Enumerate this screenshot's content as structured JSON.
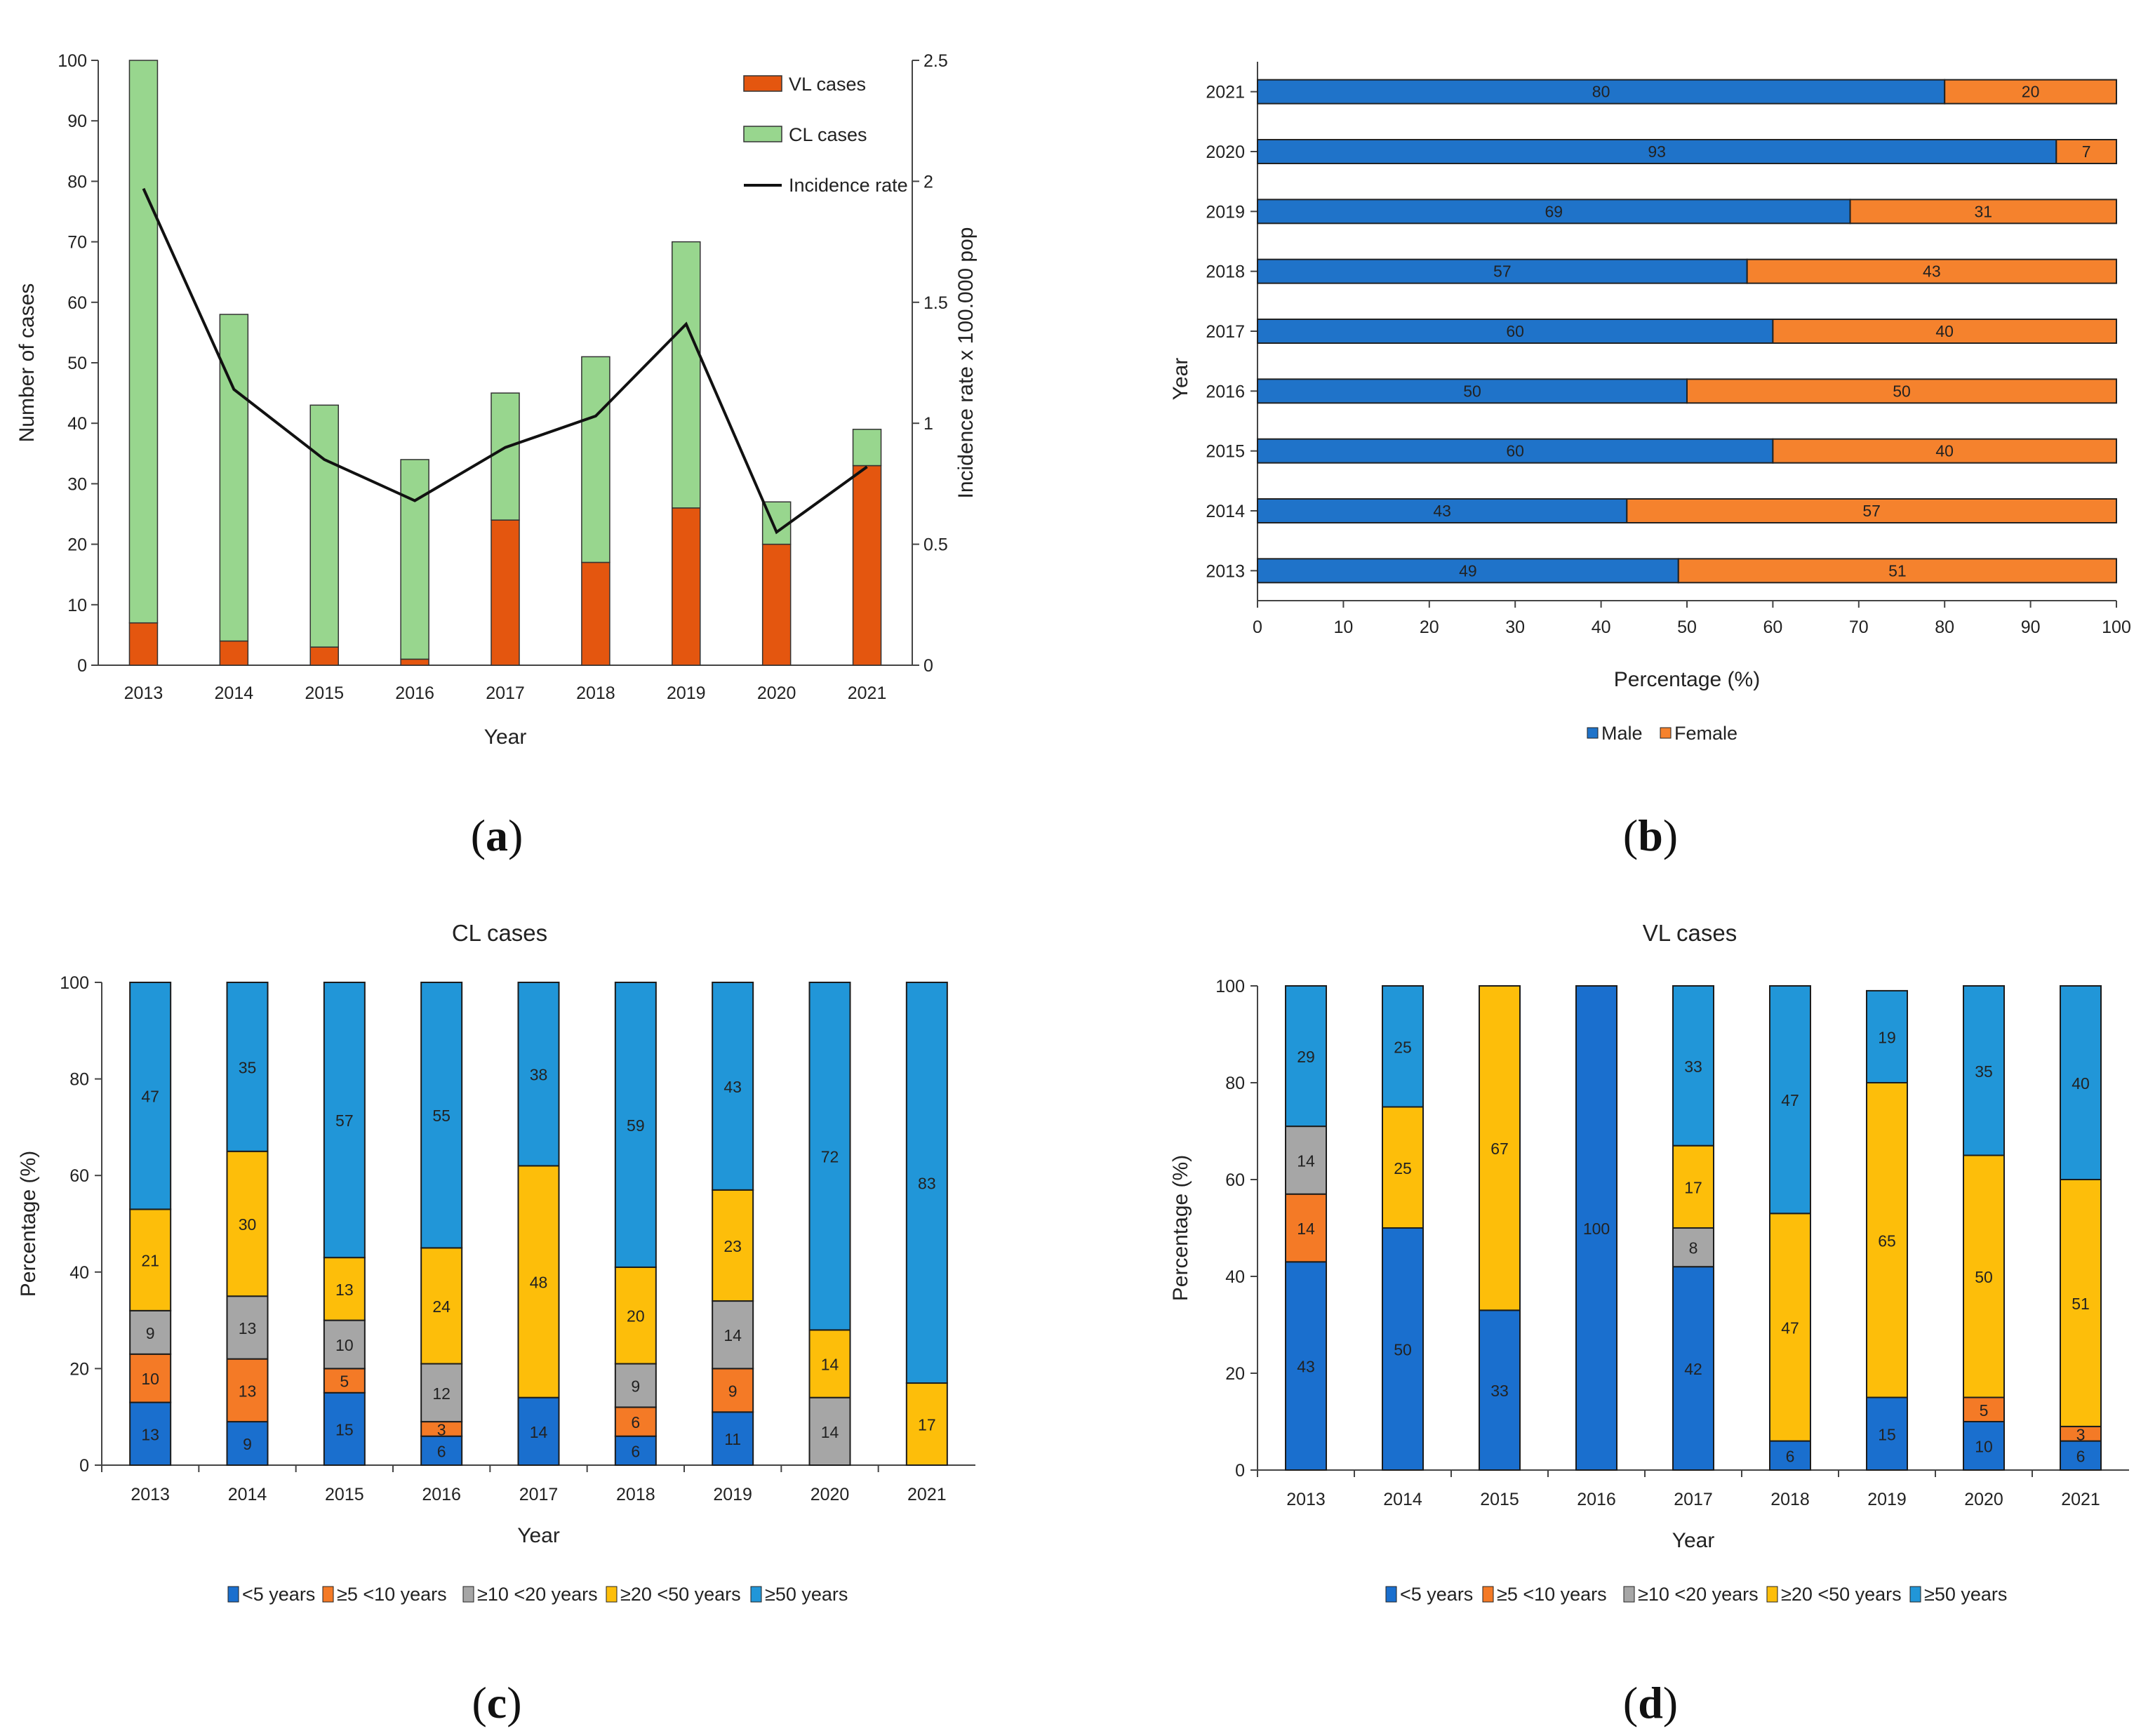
{
  "colors": {
    "vl": "#e4560f",
    "cl": "#98d68e",
    "line": "#111111",
    "male": "#1f73c9",
    "female": "#f5822d",
    "under5": "#1a6fce",
    "from5to10": "#f47a26",
    "from10to20": "#a6a6a6",
    "from20to50": "#fdbe0a",
    "over50": "#2196d8"
  },
  "panel_labels": {
    "a": {
      "open": "(",
      "letter": "a",
      "close": ")"
    },
    "b": {
      "open": "(",
      "letter": "b",
      "close": ")"
    },
    "c": {
      "open": "(",
      "letter": "c",
      "close": ")"
    },
    "d": {
      "open": "(",
      "letter": "d",
      "close": ")"
    }
  },
  "chart_data": [
    {
      "id": "a",
      "type": "bar",
      "stacked": true,
      "categories": [
        "2013",
        "2014",
        "2015",
        "2016",
        "2017",
        "2018",
        "2019",
        "2020",
        "2021"
      ],
      "series": [
        {
          "name": "VL cases",
          "values": [
            7,
            4,
            3,
            1,
            24,
            17,
            26,
            20,
            33
          ]
        },
        {
          "name": "CL cases",
          "values": [
            93,
            54,
            40,
            33,
            21,
            34,
            44,
            7,
            6
          ]
        }
      ],
      "line_series": {
        "name": "Incidence rate",
        "axis": "right",
        "values": [
          1.97,
          1.14,
          0.85,
          0.68,
          0.9,
          1.03,
          1.41,
          0.55,
          0.82
        ]
      },
      "xlabel": "Year",
      "ylabel": "Number of cases",
      "y2label": "Incidence rate x 100.000 pop",
      "ylim": [
        0,
        100
      ],
      "yticks": [
        "0",
        "10",
        "20",
        "30",
        "40",
        "50",
        "60",
        "70",
        "80",
        "90",
        "100"
      ],
      "y2lim": [
        0,
        2.5
      ],
      "y2ticks": [
        "0",
        "0.5",
        "1",
        "1.5",
        "2",
        "2.5"
      ],
      "legend": {
        "placement": "top-right",
        "items": [
          "VL cases",
          "CL cases",
          "Incidence rate"
        ]
      }
    },
    {
      "id": "b",
      "type": "bar",
      "orientation": "horizontal",
      "stacked": true,
      "categories": [
        "2013",
        "2014",
        "2015",
        "2016",
        "2017",
        "2018",
        "2019",
        "2020",
        "2021"
      ],
      "series": [
        {
          "name": "Male",
          "values": [
            49,
            43,
            60,
            50,
            60,
            57,
            69,
            93,
            80
          ]
        },
        {
          "name": "Female",
          "values": [
            51,
            57,
            40,
            50,
            40,
            43,
            31,
            7,
            20
          ]
        }
      ],
      "xlabel": "Percentage (%)",
      "ylabel": "Year",
      "xlim": [
        0,
        100
      ],
      "xticks": [
        "0",
        "10",
        "20",
        "30",
        "40",
        "50",
        "60",
        "70",
        "80",
        "90",
        "100"
      ],
      "legend": {
        "placement": "bottom",
        "items": [
          "Male",
          "Female"
        ]
      }
    },
    {
      "id": "c",
      "type": "bar",
      "stacked": true,
      "title": "CL cases",
      "categories": [
        "2013",
        "2014",
        "2015",
        "2016",
        "2017",
        "2018",
        "2019",
        "2020",
        "2021"
      ],
      "series": [
        {
          "name": "<5 years",
          "values": [
            13,
            9,
            15,
            6,
            14,
            6,
            11,
            0,
            0
          ],
          "labels": [
            "13",
            "9",
            "15",
            "6",
            "14",
            "6",
            "11",
            "",
            ""
          ]
        },
        {
          "name": "≥5 <10 years",
          "values": [
            10,
            13,
            5,
            3,
            0,
            6,
            9,
            0,
            0
          ],
          "labels": [
            "10",
            "13",
            "5",
            "3",
            "",
            "6",
            "9",
            "",
            ""
          ]
        },
        {
          "name": "≥10 <20 years",
          "values": [
            9,
            13,
            10,
            12,
            0,
            9,
            14,
            14,
            0
          ],
          "labels": [
            "9",
            "13",
            "10",
            "12",
            "",
            "9",
            "14",
            "14",
            ""
          ]
        },
        {
          "name": "≥20 <50 years",
          "values": [
            21,
            30,
            13,
            24,
            48,
            20,
            23,
            14,
            17
          ],
          "labels": [
            "21",
            "30",
            "13",
            "24",
            "48",
            "20",
            "23",
            "14",
            "17"
          ]
        },
        {
          "name": "≥50 years",
          "values": [
            47,
            35,
            57,
            55,
            38,
            59,
            43,
            72,
            83
          ],
          "labels": [
            "47",
            "35",
            "57",
            "55",
            "38",
            "59",
            "43",
            "72",
            "83"
          ]
        }
      ],
      "xlabel": "Year",
      "ylabel": "Percentage (%)",
      "ylim": [
        0,
        100
      ],
      "yticks": [
        "0",
        "20",
        "40",
        "60",
        "80",
        "100"
      ],
      "legend": {
        "placement": "bottom",
        "items": [
          "<5 years",
          "≥5 <10 years",
          "≥10 <20 years",
          "≥20 <50 years",
          "≥50 years"
        ]
      }
    },
    {
      "id": "d",
      "type": "bar",
      "stacked": true,
      "title": "VL cases",
      "categories": [
        "2013",
        "2014",
        "2015",
        "2016",
        "2017",
        "2018",
        "2019",
        "2020",
        "2021"
      ],
      "series": [
        {
          "name": "<5 years",
          "values": [
            43,
            50,
            33,
            100,
            42,
            6,
            15,
            10,
            6
          ],
          "labels": [
            "43",
            "50",
            "33",
            "100",
            "42",
            "6",
            "15",
            "10",
            "6"
          ]
        },
        {
          "name": "≥5 <10 years",
          "values": [
            14,
            0,
            0,
            0,
            0,
            0,
            0,
            5,
            3
          ],
          "labels": [
            "14",
            "",
            "",
            "",
            "",
            "",
            "",
            "5",
            "3"
          ]
        },
        {
          "name": "≥10 <20 years",
          "values": [
            14,
            0,
            0,
            0,
            8,
            0,
            0,
            0,
            0
          ],
          "labels": [
            "14",
            "",
            "",
            "",
            "8",
            "",
            "",
            "",
            ""
          ]
        },
        {
          "name": "≥20 <50 years",
          "values": [
            0,
            25,
            67,
            0,
            17,
            47,
            65,
            50,
            51
          ],
          "labels": [
            "",
            "25",
            "67",
            "",
            "17",
            "47",
            "65",
            "50",
            "51"
          ]
        },
        {
          "name": "≥50 years",
          "values": [
            29,
            25,
            0,
            0,
            33,
            47,
            19,
            35,
            40
          ],
          "labels": [
            "29",
            "25",
            "",
            "",
            "33",
            "47",
            "19",
            "35",
            "40"
          ]
        }
      ],
      "xlabel": "Year",
      "ylabel": "Percentage (%)",
      "ylim": [
        0,
        100
      ],
      "yticks": [
        "0",
        "20",
        "40",
        "60",
        "80",
        "100"
      ],
      "legend": {
        "placement": "bottom",
        "items": [
          "<5 years",
          "≥5 <10 years",
          "≥10 <20 years",
          "≥20 <50 years",
          "≥50 years"
        ]
      }
    }
  ]
}
